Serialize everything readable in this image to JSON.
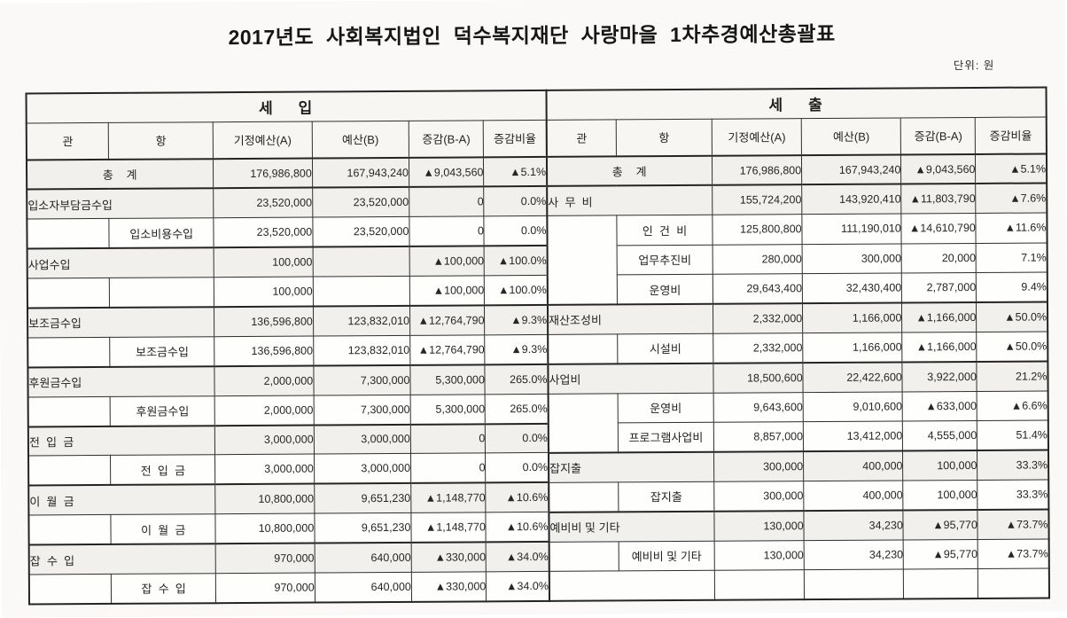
{
  "page": {
    "title": "2017년도 사회복지법인 덕수복지재단 사랑마을 1차추경예산총괄표",
    "unit_label": "단위: 원"
  },
  "columns": [
    "관",
    "항",
    "기정예산(A)",
    "예산(B)",
    "증감(B-A)",
    "증감비율"
  ],
  "tables": [
    {
      "id": "revenue",
      "title": "세    입",
      "rows": [
        {
          "type": "total",
          "label": "총   계",
          "values": [
            "176,986,800",
            "167,943,240",
            "▲9,043,560",
            "▲5.1%"
          ]
        },
        {
          "type": "group",
          "label": "입소자부담금수입",
          "values": [
            "23,520,000",
            "23,520,000",
            "0",
            "0.0%"
          ]
        },
        {
          "type": "item",
          "label": "입소비용수입",
          "values": [
            "23,520,000",
            "23,520,000",
            "0",
            "0.0%"
          ]
        },
        {
          "type": "group",
          "label": "사업수입",
          "values": [
            "100,000",
            "",
            "▲100,000",
            "▲100.0%"
          ]
        },
        {
          "type": "item",
          "label": "",
          "values": [
            "100,000",
            "",
            "▲100,000",
            "▲100.0%"
          ]
        },
        {
          "type": "group",
          "label": "보조금수입",
          "values": [
            "136,596,800",
            "123,832,010",
            "▲12,764,790",
            "▲9.3%"
          ]
        },
        {
          "type": "item",
          "label": "보조금수입",
          "values": [
            "136,596,800",
            "123,832,010",
            "▲12,764,790",
            "▲9.3%"
          ]
        },
        {
          "type": "group",
          "label": "후원금수입",
          "values": [
            "2,000,000",
            "7,300,000",
            "5,300,000",
            "265.0%"
          ]
        },
        {
          "type": "item",
          "label": "후원금수입",
          "values": [
            "2,000,000",
            "7,300,000",
            "5,300,000",
            "265.0%"
          ]
        },
        {
          "type": "group",
          "label": "전  입  금",
          "values": [
            "3,000,000",
            "3,000,000",
            "0",
            "0.0%"
          ]
        },
        {
          "type": "item",
          "label": "전  입  금",
          "values": [
            "3,000,000",
            "3,000,000",
            "0",
            "0.0%"
          ]
        },
        {
          "type": "group",
          "label": "이  월  금",
          "values": [
            "10,800,000",
            "9,651,230",
            "▲1,148,770",
            "▲10.6%"
          ]
        },
        {
          "type": "item",
          "label": "이  월  금",
          "values": [
            "10,800,000",
            "9,651,230",
            "▲1,148,770",
            "▲10.6%"
          ]
        },
        {
          "type": "group",
          "label": "잡  수  입",
          "values": [
            "970,000",
            "640,000",
            "▲330,000",
            "▲34.0%"
          ]
        },
        {
          "type": "item",
          "label": "잡  수  입",
          "values": [
            "970,000",
            "640,000",
            "▲330,000",
            "▲34.0%"
          ]
        }
      ]
    },
    {
      "id": "expenditure",
      "title": "세    출",
      "rows": [
        {
          "type": "total",
          "label": "총   계",
          "values": [
            "176,986,800",
            "167,943,240",
            "▲9,043,560",
            "▲5.1%"
          ]
        },
        {
          "type": "group",
          "label": "사  무  비",
          "values": [
            "155,724,200",
            "143,920,410",
            "▲11,803,790",
            "▲7.6%"
          ]
        },
        {
          "type": "item",
          "label": "인  건  비",
          "gwanSpan": 3,
          "values": [
            "125,800,800",
            "111,190,010",
            "▲14,610,790",
            "▲11.6%"
          ]
        },
        {
          "type": "item",
          "label": "업무추진비",
          "noGwan": true,
          "values": [
            "280,000",
            "300,000",
            "20,000",
            "7.1%"
          ]
        },
        {
          "type": "item",
          "label": "운영비",
          "noGwan": true,
          "values": [
            "29,643,400",
            "32,430,400",
            "2,787,000",
            "9.4%"
          ]
        },
        {
          "type": "group",
          "label": "재산조성비",
          "values": [
            "2,332,000",
            "1,166,000",
            "▲1,166,000",
            "▲50.0%"
          ]
        },
        {
          "type": "item",
          "label": "시설비",
          "values": [
            "2,332,000",
            "1,166,000",
            "▲1,166,000",
            "▲50.0%"
          ]
        },
        {
          "type": "group",
          "label": "사업비",
          "values": [
            "18,500,600",
            "22,422,600",
            "3,922,000",
            "21.2%"
          ]
        },
        {
          "type": "item",
          "label": "운영비",
          "gwanSpan": 2,
          "values": [
            "9,643,600",
            "9,010,600",
            "▲633,000",
            "▲6.6%"
          ]
        },
        {
          "type": "item",
          "label": "프로그램사업비",
          "noGwan": true,
          "values": [
            "8,857,000",
            "13,412,000",
            "4,555,000",
            "51.4%"
          ]
        },
        {
          "type": "group",
          "label": "잡지출",
          "values": [
            "300,000",
            "400,000",
            "100,000",
            "33.3%"
          ]
        },
        {
          "type": "item",
          "label": "잡지출",
          "values": [
            "300,000",
            "400,000",
            "100,000",
            "33.3%"
          ]
        },
        {
          "type": "group",
          "label": "예비비 및 기타",
          "values": [
            "130,000",
            "34,230",
            "▲95,770",
            "▲73.7%"
          ]
        },
        {
          "type": "item",
          "label": "예비비 및 기타",
          "values": [
            "130,000",
            "34,230",
            "▲95,770",
            "▲73.7%"
          ]
        },
        {
          "type": "empty",
          "label": "",
          "values": [
            "",
            "",
            "",
            ""
          ]
        }
      ]
    }
  ]
}
